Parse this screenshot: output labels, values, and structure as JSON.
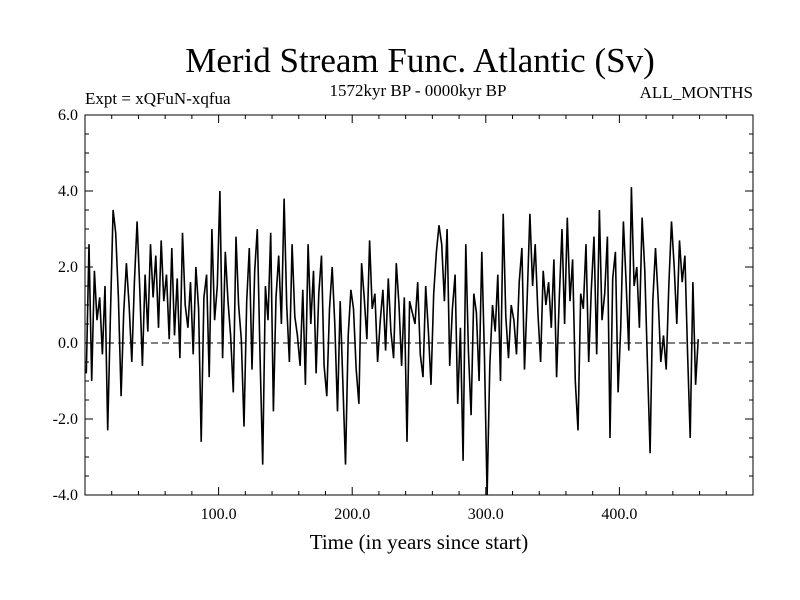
{
  "chart_data": {
    "type": "line",
    "title": "Merid Stream Func. Atlantic (Sv)",
    "subtitle_left": "Expt = xQFuN-xqfua",
    "subtitle_center": "1572kyr BP - 0000kyr BP",
    "subtitle_right": "ALL_MONTHS",
    "xlabel": "Time (in years since start)",
    "ylabel": "",
    "xlim": [
      0,
      500
    ],
    "ylim": [
      -4.0,
      6.0
    ],
    "xticks": [
      100,
      200,
      300,
      400
    ],
    "xtick_labels": [
      "100.0",
      "200.0",
      "300.0",
      "400.0"
    ],
    "yticks": [
      6,
      4,
      2,
      0,
      -2,
      -4
    ],
    "ytick_labels": [
      "6.0",
      "4.0",
      "2.0",
      "0.0",
      "-2.0",
      "-4.0"
    ],
    "zero_line": 0.0,
    "series": [
      {
        "name": "Merid Stream Func. Atlantic",
        "x_start": 1,
        "x_step": 2,
        "values": [
          -0.8,
          2.6,
          -1.0,
          1.9,
          0.6,
          1.2,
          -0.3,
          1.5,
          -2.3,
          0.7,
          3.5,
          2.9,
          1.2,
          -1.4,
          0.8,
          2.1,
          1.0,
          -0.5,
          1.6,
          3.2,
          1.4,
          -0.6,
          1.8,
          0.3,
          2.6,
          1.2,
          2.3,
          0.4,
          2.7,
          1.1,
          1.8,
          0.1,
          2.5,
          0.2,
          1.7,
          -0.4,
          2.9,
          1.0,
          0.4,
          1.6,
          -0.3,
          2.0,
          0.9,
          -2.6,
          1.2,
          1.8,
          -0.9,
          3.0,
          0.6,
          1.5,
          4.0,
          -0.4,
          2.4,
          1.1,
          0.2,
          -1.3,
          2.8,
          1.0,
          0.1,
          -2.2,
          1.1,
          2.5,
          -0.7,
          1.9,
          3.0,
          -0.3,
          -3.2,
          1.5,
          0.6,
          2.9,
          -1.8,
          1.2,
          2.3,
          0.5,
          3.8,
          1.0,
          -0.5,
          2.6,
          0.7,
          0.2,
          -0.6,
          1.4,
          -1.1,
          2.6,
          0.5,
          1.9,
          -0.8,
          1.3,
          2.3,
          -0.6,
          -1.4,
          0.9,
          2.0,
          0.5,
          -1.8,
          1.1,
          -1.0,
          -3.2,
          0.2,
          1.4,
          0.9,
          -0.7,
          -1.6,
          2.1,
          1.2,
          0.1,
          2.7,
          0.9,
          1.3,
          -0.5,
          0.6,
          1.4,
          -0.2,
          1.7,
          0.3,
          -0.4,
          2.1,
          1.0,
          -0.6,
          1.2,
          -2.6,
          1.1,
          0.8,
          0.5,
          1.6,
          -0.3,
          -0.9,
          1.5,
          0.3,
          -1.1,
          1.3,
          2.4,
          3.1,
          2.6,
          1.1,
          3.0,
          -0.6,
          0.9,
          1.8,
          -1.6,
          0.4,
          -3.1,
          2.6,
          -0.2,
          -1.9,
          1.3,
          0.8,
          -1.0,
          2.4,
          -0.4,
          -4.0,
          -0.6,
          1.0,
          0.3,
          1.8,
          -1.0,
          3.4,
          0.7,
          -0.4,
          1.0,
          0.6,
          -0.3,
          1.6,
          2.5,
          -0.7,
          1.2,
          3.4,
          1.5,
          2.6,
          0.8,
          -0.5,
          1.9,
          1.0,
          1.6,
          0.4,
          2.2,
          -0.9,
          1.2,
          3.0,
          0.5,
          3.3,
          1.1,
          2.2,
          -1.0,
          -2.3,
          1.3,
          0.9,
          2.6,
          -0.5,
          1.4,
          2.8,
          -0.3,
          3.5,
          0.6,
          1.3,
          2.8,
          -2.5,
          1.7,
          2.4,
          -1.3,
          0.4,
          3.2,
          1.6,
          -0.2,
          4.1,
          1.5,
          2.0,
          0.4,
          3.3,
          1.9,
          -0.6,
          -2.9,
          1.1,
          2.5,
          1.2,
          -0.5,
          0.2,
          -0.7,
          1.5,
          3.2,
          2.0,
          0.5,
          2.7,
          1.6,
          2.3,
          -0.2,
          -2.5,
          1.6,
          -1.1,
          0.1
        ]
      }
    ]
  }
}
